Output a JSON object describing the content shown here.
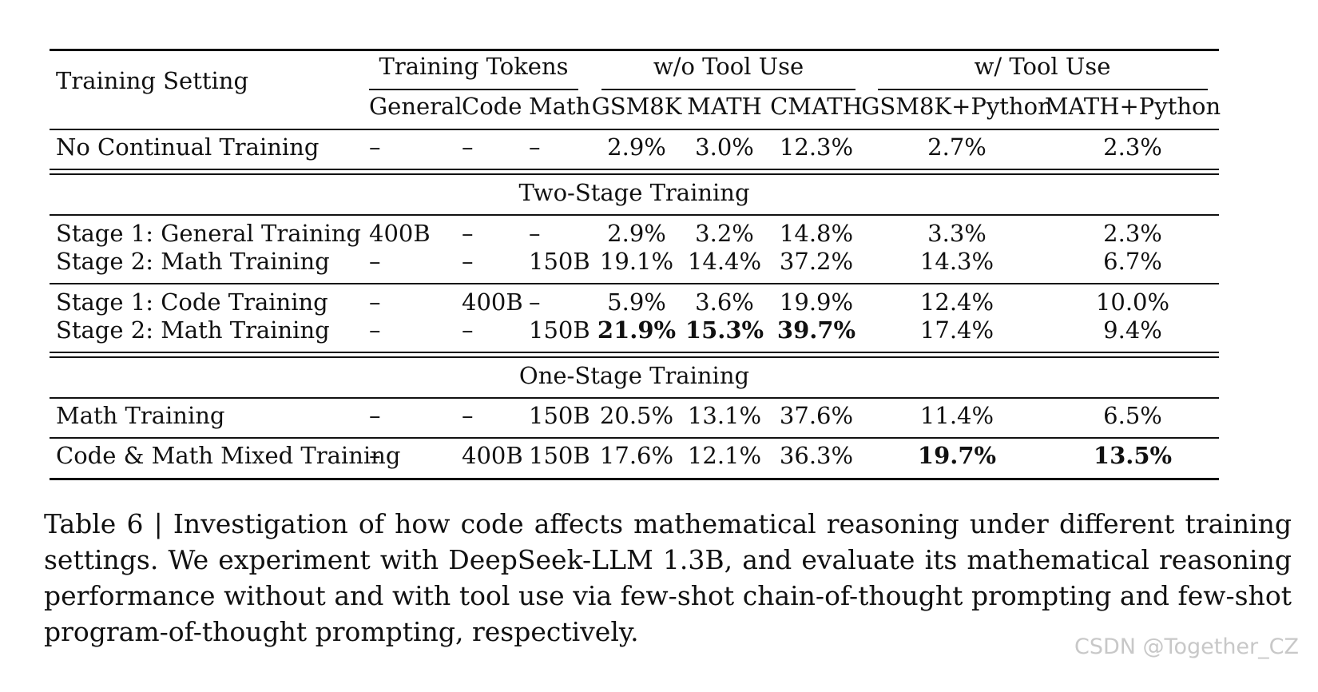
{
  "header": {
    "training_setting": "Training Setting",
    "groups": [
      {
        "label": "Training Tokens",
        "columns": [
          "General",
          "Code",
          "Math"
        ]
      },
      {
        "label": "w/o Tool Use",
        "columns": [
          "GSM8K",
          "MATH",
          "CMATH"
        ]
      },
      {
        "label": "w/ Tool Use",
        "columns": [
          "GSM8K+Python",
          "MATH+Python"
        ]
      }
    ]
  },
  "rows": [
    {
      "kind": "data",
      "cells": [
        "No Continual Training",
        "–",
        "–",
        "–",
        "2.9%",
        "3.0%",
        "12.3%",
        "2.7%",
        "2.3%"
      ],
      "bold": []
    },
    {
      "kind": "section",
      "label": "Two-Stage Training"
    },
    {
      "kind": "data",
      "cells": [
        "Stage 1: General Training",
        "400B",
        "–",
        "–",
        "2.9%",
        "3.2%",
        "14.8%",
        "3.3%",
        "2.3%"
      ],
      "bold": []
    },
    {
      "kind": "data",
      "cells": [
        "Stage 2: Math Training",
        "–",
        "–",
        "150B",
        "19.1%",
        "14.4%",
        "37.2%",
        "14.3%",
        "6.7%"
      ],
      "bold": []
    },
    {
      "kind": "data",
      "cells": [
        "Stage 1: Code Training",
        "–",
        "400B",
        "–",
        "5.9%",
        "3.6%",
        "19.9%",
        "12.4%",
        "10.0%"
      ],
      "bold": []
    },
    {
      "kind": "data",
      "cells": [
        "Stage 2: Math Training",
        "–",
        "–",
        "150B",
        "21.9%",
        "15.3%",
        "39.7%",
        "17.4%",
        "9.4%"
      ],
      "bold": [
        4,
        5,
        6
      ]
    },
    {
      "kind": "section",
      "label": "One-Stage Training"
    },
    {
      "kind": "data",
      "cells": [
        "Math Training",
        "–",
        "–",
        "150B",
        "20.5%",
        "13.1%",
        "37.6%",
        "11.4%",
        "6.5%"
      ],
      "bold": []
    },
    {
      "kind": "data",
      "cells": [
        "Code & Math Mixed Training",
        "–",
        "400B",
        "150B",
        "17.6%",
        "12.1%",
        "36.3%",
        "19.7%",
        "13.5%"
      ],
      "bold": [
        7,
        8
      ]
    }
  ],
  "caption": {
    "lines": [
      "Table 6 | Investigation of how code affects mathematical reasoning under different training",
      "settings. We experiment with DeepSeek-LLM 1.3B, and evaluate its mathematical reasoning",
      "performance without and with tool use via few-shot chain-of-thought prompting and few-shot",
      "program-of-thought prompting, respectively."
    ]
  },
  "watermark": "CSDN @Together_CZ"
}
